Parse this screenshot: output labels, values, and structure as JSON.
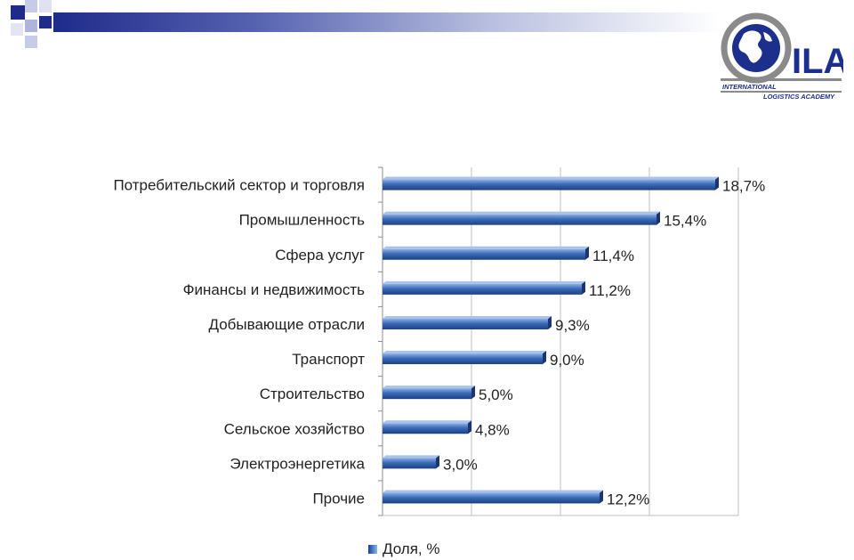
{
  "logo": {
    "letters": "ILA",
    "line1": "INTERNATIONAL",
    "line2": "LOGISTICS ACADEMY"
  },
  "chart_data": {
    "type": "bar",
    "orientation": "horizontal",
    "title": "",
    "xlabel": "",
    "ylabel": "",
    "categories": [
      "Потребительский сектор и торговля",
      "Промышленность",
      "Сфера услуг",
      "Финансы и недвижимость",
      "Добывающие отрасли",
      "Транспорт",
      "Строительство",
      "Сельское хозяйство",
      "Электроэнергетика",
      "Прочие"
    ],
    "series": [
      {
        "name": "Доля, %",
        "values": [
          18.7,
          15.4,
          11.4,
          11.2,
          9.3,
          9.0,
          5.0,
          4.8,
          3.0,
          12.2
        ],
        "labels": [
          "18,7%",
          "15,4%",
          "11,4%",
          "11,2%",
          "9,3%",
          "9,0%",
          "5,0%",
          "4,8%",
          "3,0%",
          "12,2%"
        ],
        "color": "#2f5fa8"
      }
    ],
    "xlim": [
      0,
      20
    ],
    "grid": true,
    "legend_position": "bottom"
  }
}
